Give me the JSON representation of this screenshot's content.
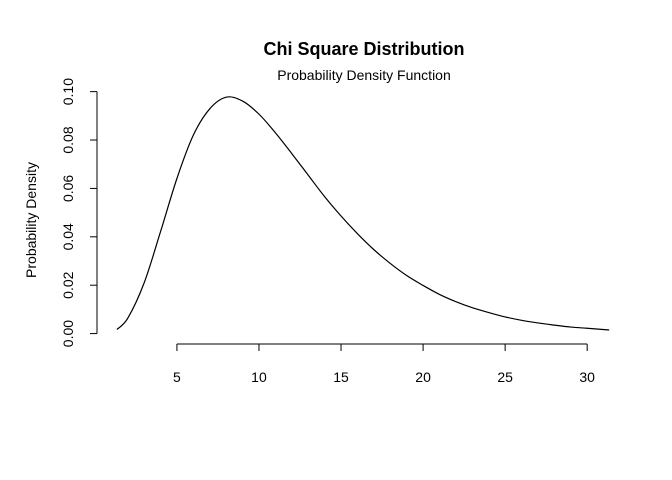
{
  "chart_data": {
    "type": "line",
    "title": "Chi Square Distribution",
    "subtitle": "Probability Density Function",
    "xlabel": "",
    "ylabel": "Probability Density",
    "xlim": [
      0.13,
      32.67
    ],
    "ylim": [
      -0.0043,
      0.1015
    ],
    "x_ticks": [
      5,
      10,
      15,
      20,
      25,
      30
    ],
    "x_tick_labels": [
      "5",
      "10",
      "15",
      "20",
      "25",
      "30"
    ],
    "y_ticks": [
      0.0,
      0.02,
      0.04,
      0.06,
      0.08,
      0.1
    ],
    "y_tick_labels": [
      "0.00",
      "0.02",
      "0.04",
      "0.06",
      "0.08",
      "0.10"
    ],
    "grid": false,
    "legend": "none",
    "line_color": "#000000",
    "series": [
      {
        "x": [
          1.34,
          2,
          3,
          4,
          5,
          6,
          7,
          8,
          9,
          10,
          11,
          12,
          13,
          14,
          15,
          16,
          17,
          18,
          19,
          20,
          21,
          22,
          23,
          24,
          25,
          26,
          27,
          28,
          29,
          30,
          31.34
        ],
        "values": [
          0.0017,
          0.0063,
          0.0209,
          0.0421,
          0.0641,
          0.082,
          0.0929,
          0.0977,
          0.0961,
          0.0907,
          0.083,
          0.0744,
          0.0655,
          0.0566,
          0.0486,
          0.0413,
          0.0347,
          0.029,
          0.024,
          0.0199,
          0.0162,
          0.0132,
          0.0107,
          0.0087,
          0.0069,
          0.0055,
          0.0044,
          0.0035,
          0.0027,
          0.0022,
          0.0015
        ]
      }
    ]
  }
}
